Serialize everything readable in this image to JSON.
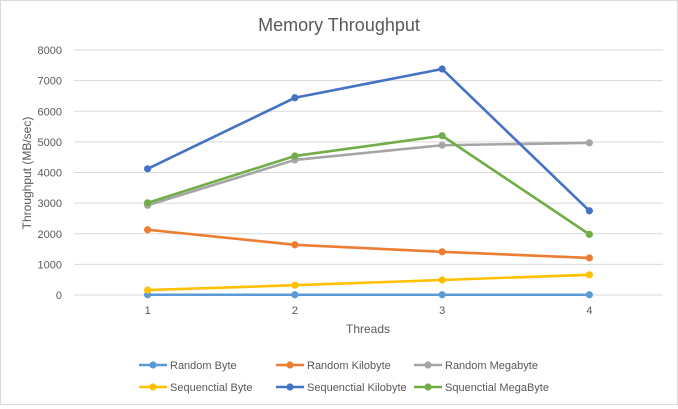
{
  "chart_data": {
    "type": "line",
    "title": "Memory Throughput",
    "xlabel": "Threads",
    "ylabel": "Throughput (MB/sec)",
    "categories": [
      "1",
      "2",
      "3",
      "4"
    ],
    "ylim": [
      0,
      8000
    ],
    "yticks": [
      "0",
      "1000",
      "2000",
      "3000",
      "4000",
      "5000",
      "6000",
      "7000",
      "8000"
    ],
    "grid": true,
    "legend_position": "bottom",
    "series": [
      {
        "name": "Random Byte",
        "color": "#5b9bd5",
        "values": [
          8,
          8,
          8,
          8
        ]
      },
      {
        "name": "Random Kilobyte",
        "color": "#ed7d31",
        "values": [
          2130,
          1640,
          1410,
          1210
        ]
      },
      {
        "name": "Random Megabyte",
        "color": "#a5a5a5",
        "values": [
          2930,
          4410,
          4890,
          4970
        ]
      },
      {
        "name": "Sequenctial Byte",
        "color": "#ffc000",
        "values": [
          160,
          320,
          490,
          660
        ]
      },
      {
        "name": "Sequenctial Kilobyte",
        "color": "#4472c4",
        "values": [
          4120,
          6440,
          7380,
          2750
        ]
      },
      {
        "name": "Squenctial MegaByte",
        "color": "#70ad47",
        "values": [
          3010,
          4540,
          5200,
          1980
        ]
      }
    ]
  }
}
